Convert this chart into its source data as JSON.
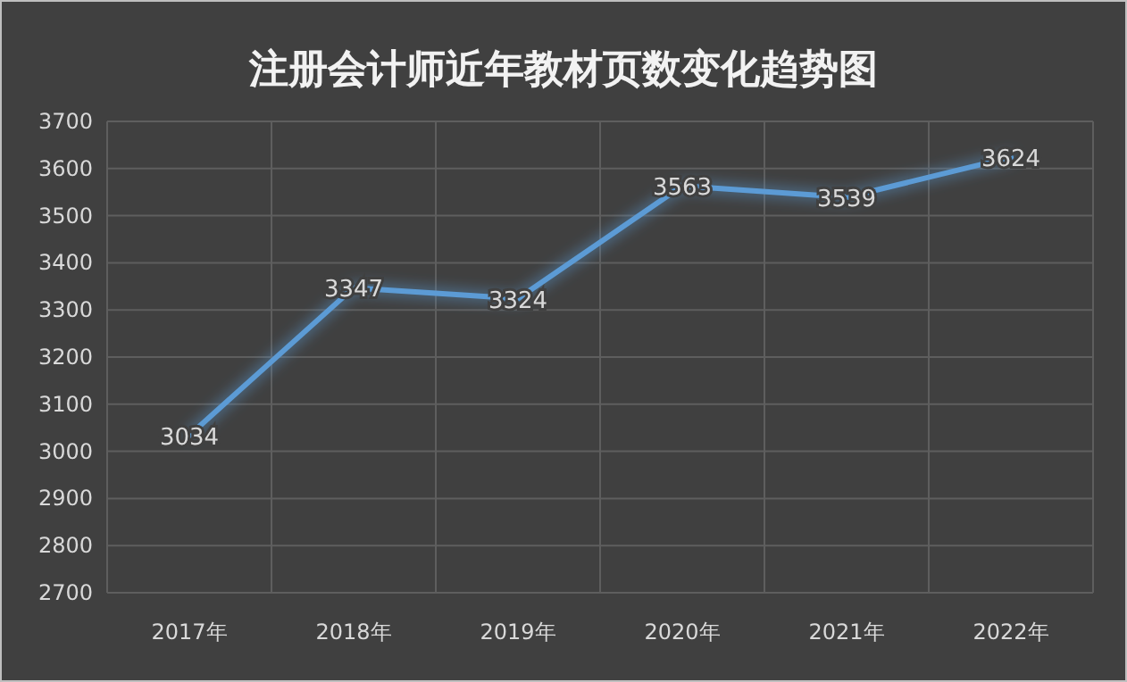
{
  "chart_data": {
    "type": "line",
    "title": "注册会计师近年教材页数变化趋势图",
    "categories": [
      "2017年",
      "2018年",
      "2019年",
      "2020年",
      "2021年",
      "2022年"
    ],
    "series": [
      {
        "color": "#5b9bd5",
        "values": [
          3034,
          3347,
          3324,
          3563,
          3539,
          3624
        ]
      }
    ],
    "ylim": [
      2700,
      3700
    ],
    "yticks": [
      2700,
      2800,
      2900,
      3000,
      3100,
      3200,
      3300,
      3400,
      3500,
      3600,
      3700
    ],
    "grid": true,
    "data_labels": true,
    "marker": "none",
    "line_style": "solid"
  }
}
